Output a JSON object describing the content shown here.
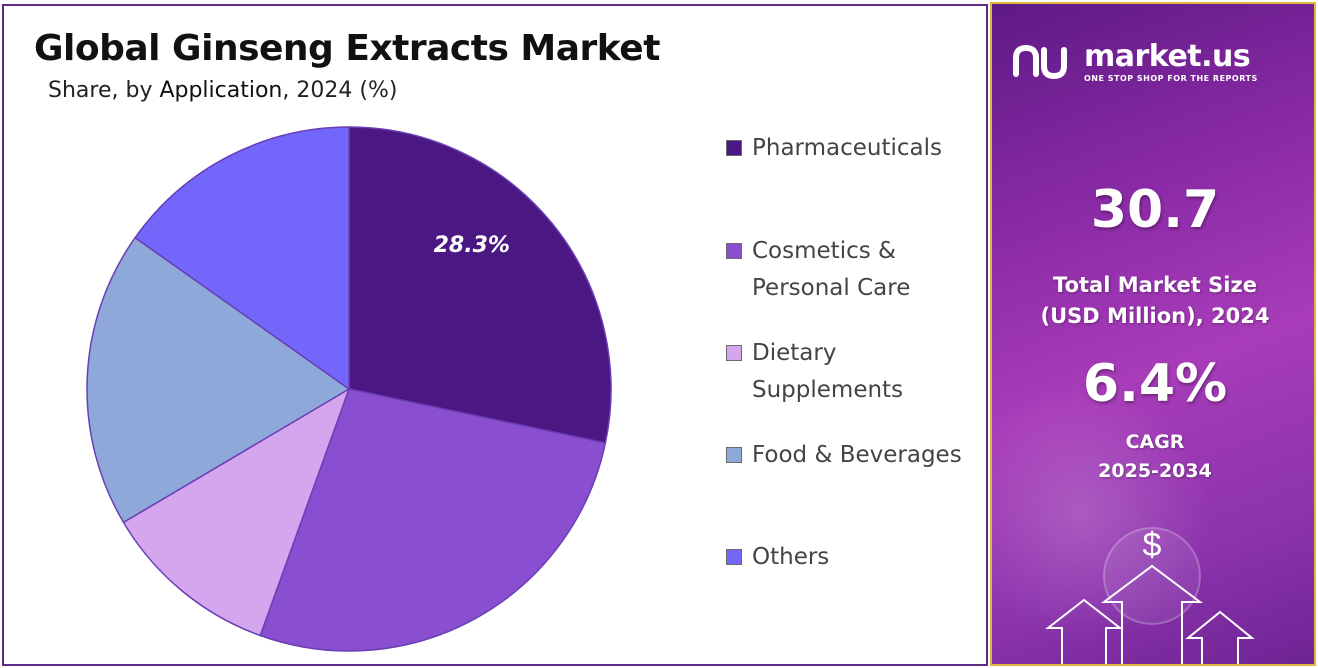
{
  "chart_data": {
    "type": "pie",
    "title": "Global Ginseng Extracts Market",
    "subtitle_prefix": "Share, by ",
    "subtitle_emphasis": "Application",
    "subtitle_suffix": ", 2024 (%)",
    "categories": [
      "Pharmaceuticals",
      "Cosmetics & Personal Care",
      "Dietary Supplements",
      "Food & Beverages",
      "Others"
    ],
    "values": [
      28.3,
      27.2,
      11.0,
      18.3,
      15.2
    ],
    "colors": [
      "#4b1782",
      "#8a4ed0",
      "#d4a6ee",
      "#8ea8da",
      "#7266fb"
    ],
    "data_labels": [
      "28.3%",
      "",
      "",
      "",
      ""
    ],
    "legend_position": "right",
    "start_angle_deg": 0,
    "direction": "clockwise"
  },
  "legend": {
    "items": [
      {
        "label": "Pharmaceuticals"
      },
      {
        "label": "Cosmetics & Personal Care"
      },
      {
        "label": "Dietary Supplements"
      },
      {
        "label": "Food & Beverages"
      },
      {
        "label": "Others"
      }
    ]
  },
  "sidebar": {
    "brand_name": "market.us",
    "brand_tagline": "ONE STOP SHOP FOR THE REPORTS",
    "market_size_value": "30.7",
    "market_size_label_line1": "Total Market Size",
    "market_size_label_line2": "(USD Million), 2024",
    "cagr_value": "6.4%",
    "cagr_label_line1": "CAGR",
    "cagr_label_line2": "2025-2034",
    "dollar_symbol": "$",
    "colors": {
      "accent_border": "#e0b63a",
      "panel_dark": "#5e1a84",
      "panel_light": "#a83cb9"
    }
  }
}
